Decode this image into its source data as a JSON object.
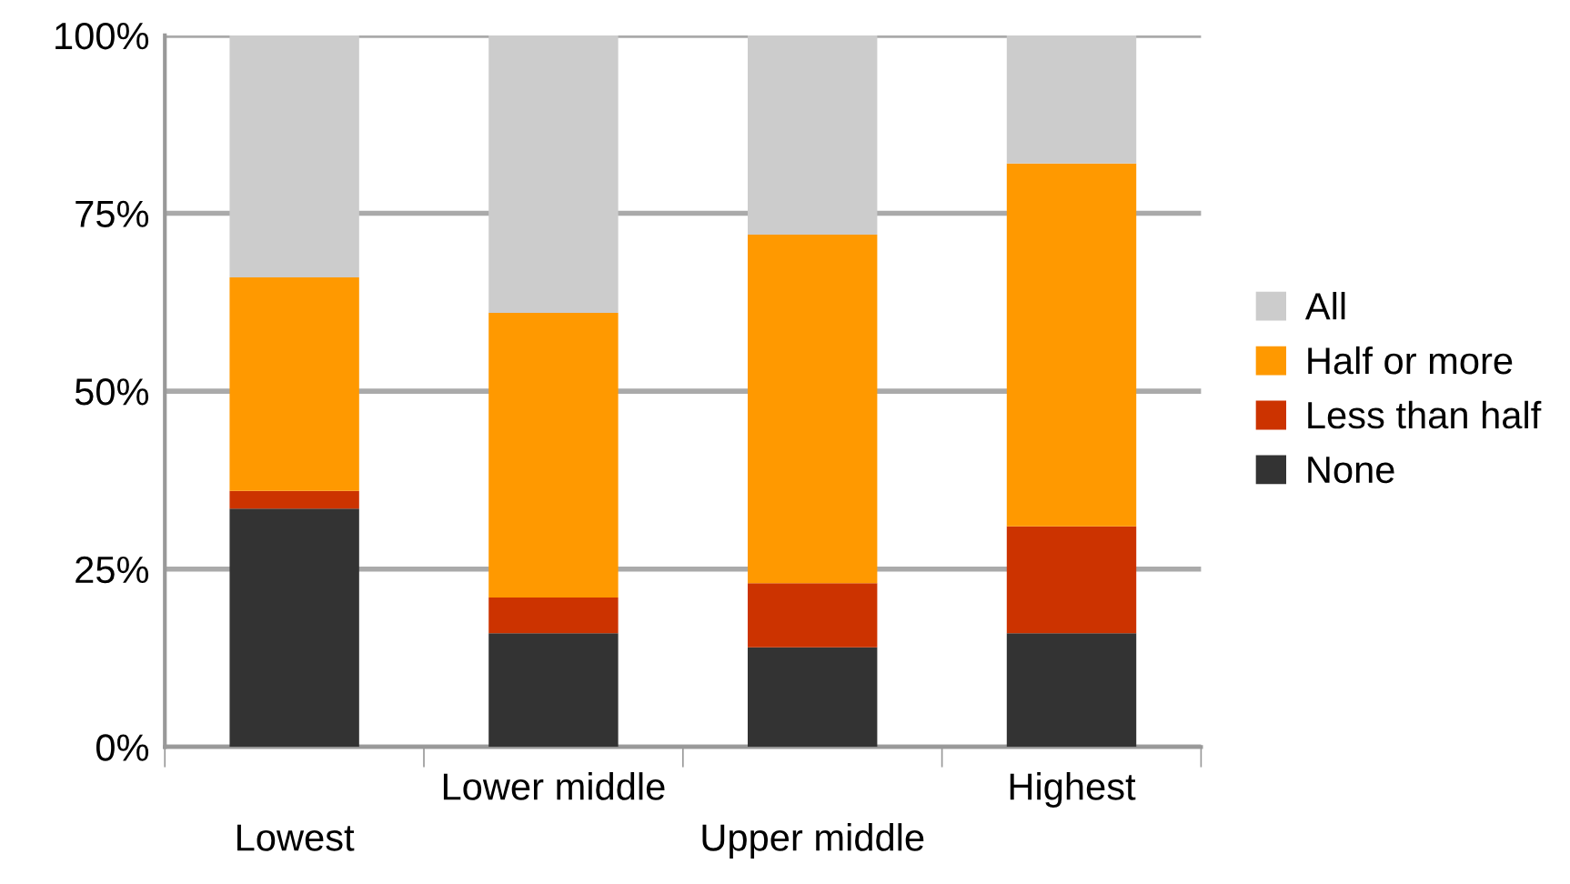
{
  "chart_data": {
    "type": "bar",
    "stacked": true,
    "categories": [
      "Lowest",
      "Lower middle",
      "Upper middle",
      "Highest"
    ],
    "series": [
      {
        "name": "None",
        "color": "#333333",
        "values": [
          33.5,
          16,
          14,
          16
        ]
      },
      {
        "name": "Less than half",
        "color": "#cc3300",
        "values": [
          2.5,
          5,
          9,
          15
        ]
      },
      {
        "name": "Half or more",
        "color": "#ff9900",
        "values": [
          30,
          40,
          49,
          51
        ]
      },
      {
        "name": "All",
        "color": "#cccccc",
        "values": [
          34,
          39,
          28,
          18
        ]
      }
    ],
    "ylim": [
      0,
      100
    ],
    "yticks": [
      {
        "value": 0,
        "label": "0%"
      },
      {
        "value": 25,
        "label": "25%"
      },
      {
        "value": 50,
        "label": "50%"
      },
      {
        "value": 75,
        "label": "75%"
      },
      {
        "value": 100,
        "label": "100%"
      }
    ],
    "grid": "y",
    "legend": "right"
  }
}
